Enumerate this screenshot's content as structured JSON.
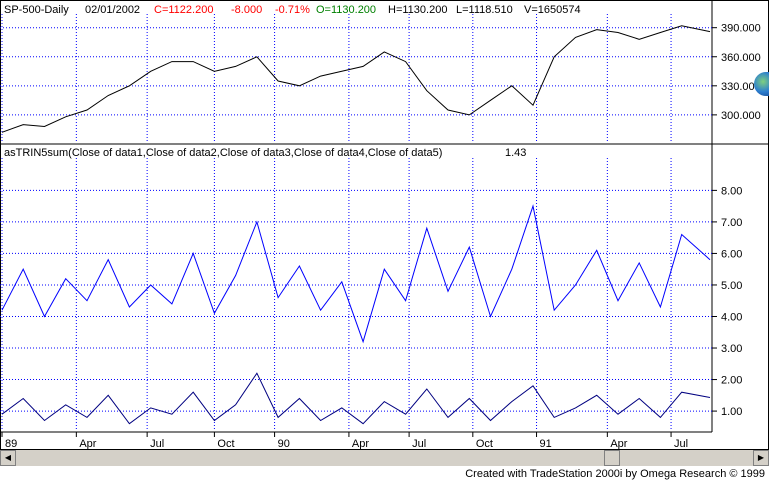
{
  "header": {
    "symbol": "SP-500-Daily",
    "date": "02/01/2002",
    "close": "C=1122.200",
    "change": "-8.000",
    "pct": "-0.71%",
    "open": "O=1130.200",
    "high": "H=1130.200",
    "low": "L=1118.510",
    "volume": "V=1650574"
  },
  "indicator": {
    "name": "asTRIN5sum(Close of data1,Close of data2,Close of data3,Close of data4,Close of data5)",
    "value": "1.43"
  },
  "footer": "Created with TradeStation 2000i by Omega Research © 1999",
  "colors": {
    "price": "#000000",
    "trin": "#0000ff",
    "trin_raw": "#000080",
    "grid": "#0000ff",
    "close": "#ff0000",
    "open": "#008000"
  },
  "icons": {
    "scroll_left": "left-arrow-icon",
    "scroll_right": "right-arrow-icon",
    "globe": "globe-icon"
  },
  "chart_data": [
    {
      "type": "line",
      "series": [
        {
          "x": [
            0,
            0.03,
            0.06,
            0.09,
            0.12,
            0.15,
            0.18,
            0.21,
            0.24,
            0.27,
            0.3,
            0.33,
            0.36,
            0.39,
            0.42,
            0.45,
            0.48,
            0.51,
            0.54,
            0.57,
            0.6,
            0.63,
            0.66,
            0.69,
            0.72,
            0.75,
            0.78,
            0.81,
            0.84,
            0.87,
            0.9,
            0.93,
            0.96,
            1.0
          ],
          "values": [
            282,
            290,
            288,
            298,
            305,
            320,
            330,
            345,
            355,
            355,
            345,
            350,
            360,
            335,
            330,
            340,
            345,
            350,
            365,
            355,
            325,
            305,
            300,
            315,
            330,
            310,
            360,
            380,
            388,
            385,
            378,
            385,
            392,
            386
          ]
        }
      ],
      "yticks": [
        "390.000",
        "360.000",
        "330.000",
        "300.000"
      ],
      "ytick_values": [
        390,
        360,
        330,
        300
      ],
      "ylim": [
        272,
        400
      ]
    },
    {
      "type": "line",
      "series": [
        {
          "x": [
            0,
            0.03,
            0.06,
            0.09,
            0.12,
            0.15,
            0.18,
            0.21,
            0.24,
            0.27,
            0.3,
            0.33,
            0.36,
            0.39,
            0.42,
            0.45,
            0.48,
            0.51,
            0.54,
            0.57,
            0.6,
            0.63,
            0.66,
            0.69,
            0.72,
            0.75,
            0.78,
            0.81,
            0.84,
            0.87,
            0.9,
            0.93,
            0.96,
            1.0
          ],
          "values": [
            4.2,
            5.5,
            4.0,
            5.2,
            4.5,
            5.8,
            4.3,
            5.0,
            4.4,
            6.0,
            4.1,
            5.3,
            7.0,
            4.6,
            5.6,
            4.2,
            5.1,
            3.2,
            5.5,
            4.5,
            6.8,
            4.8,
            6.2,
            4.0,
            5.5,
            7.5,
            4.2,
            5.0,
            6.1,
            4.5,
            5.7,
            4.3,
            6.6,
            5.8
          ]
        },
        {
          "x": [
            0,
            0.03,
            0.06,
            0.09,
            0.12,
            0.15,
            0.18,
            0.21,
            0.24,
            0.27,
            0.3,
            0.33,
            0.36,
            0.39,
            0.42,
            0.45,
            0.48,
            0.51,
            0.54,
            0.57,
            0.6,
            0.63,
            0.66,
            0.69,
            0.72,
            0.75,
            0.78,
            0.81,
            0.84,
            0.87,
            0.9,
            0.93,
            0.96,
            1.0
          ],
          "values": [
            0.9,
            1.4,
            0.7,
            1.2,
            0.8,
            1.5,
            0.6,
            1.1,
            0.9,
            1.6,
            0.7,
            1.2,
            2.2,
            0.8,
            1.4,
            0.7,
            1.1,
            0.6,
            1.3,
            0.9,
            1.7,
            0.8,
            1.4,
            0.7,
            1.3,
            1.8,
            0.8,
            1.1,
            1.5,
            0.9,
            1.4,
            0.8,
            1.6,
            1.43
          ]
        }
      ],
      "yticks": [
        "8.00",
        "7.00",
        "6.00",
        "5.00",
        "4.00",
        "3.00",
        "2.00",
        "1.00"
      ],
      "ytick_values": [
        8,
        7,
        6,
        5,
        4,
        3,
        2,
        1
      ],
      "ylim": [
        0.4,
        8.9
      ]
    }
  ],
  "xaxis": {
    "labels": [
      "89",
      "Apr",
      "Jul",
      "Oct",
      "90",
      "Apr",
      "Jul",
      "Oct",
      "91",
      "Apr",
      "Jul"
    ],
    "positions": [
      0.0,
      0.105,
      0.205,
      0.3,
      0.385,
      0.49,
      0.575,
      0.665,
      0.755,
      0.855,
      0.945
    ]
  }
}
